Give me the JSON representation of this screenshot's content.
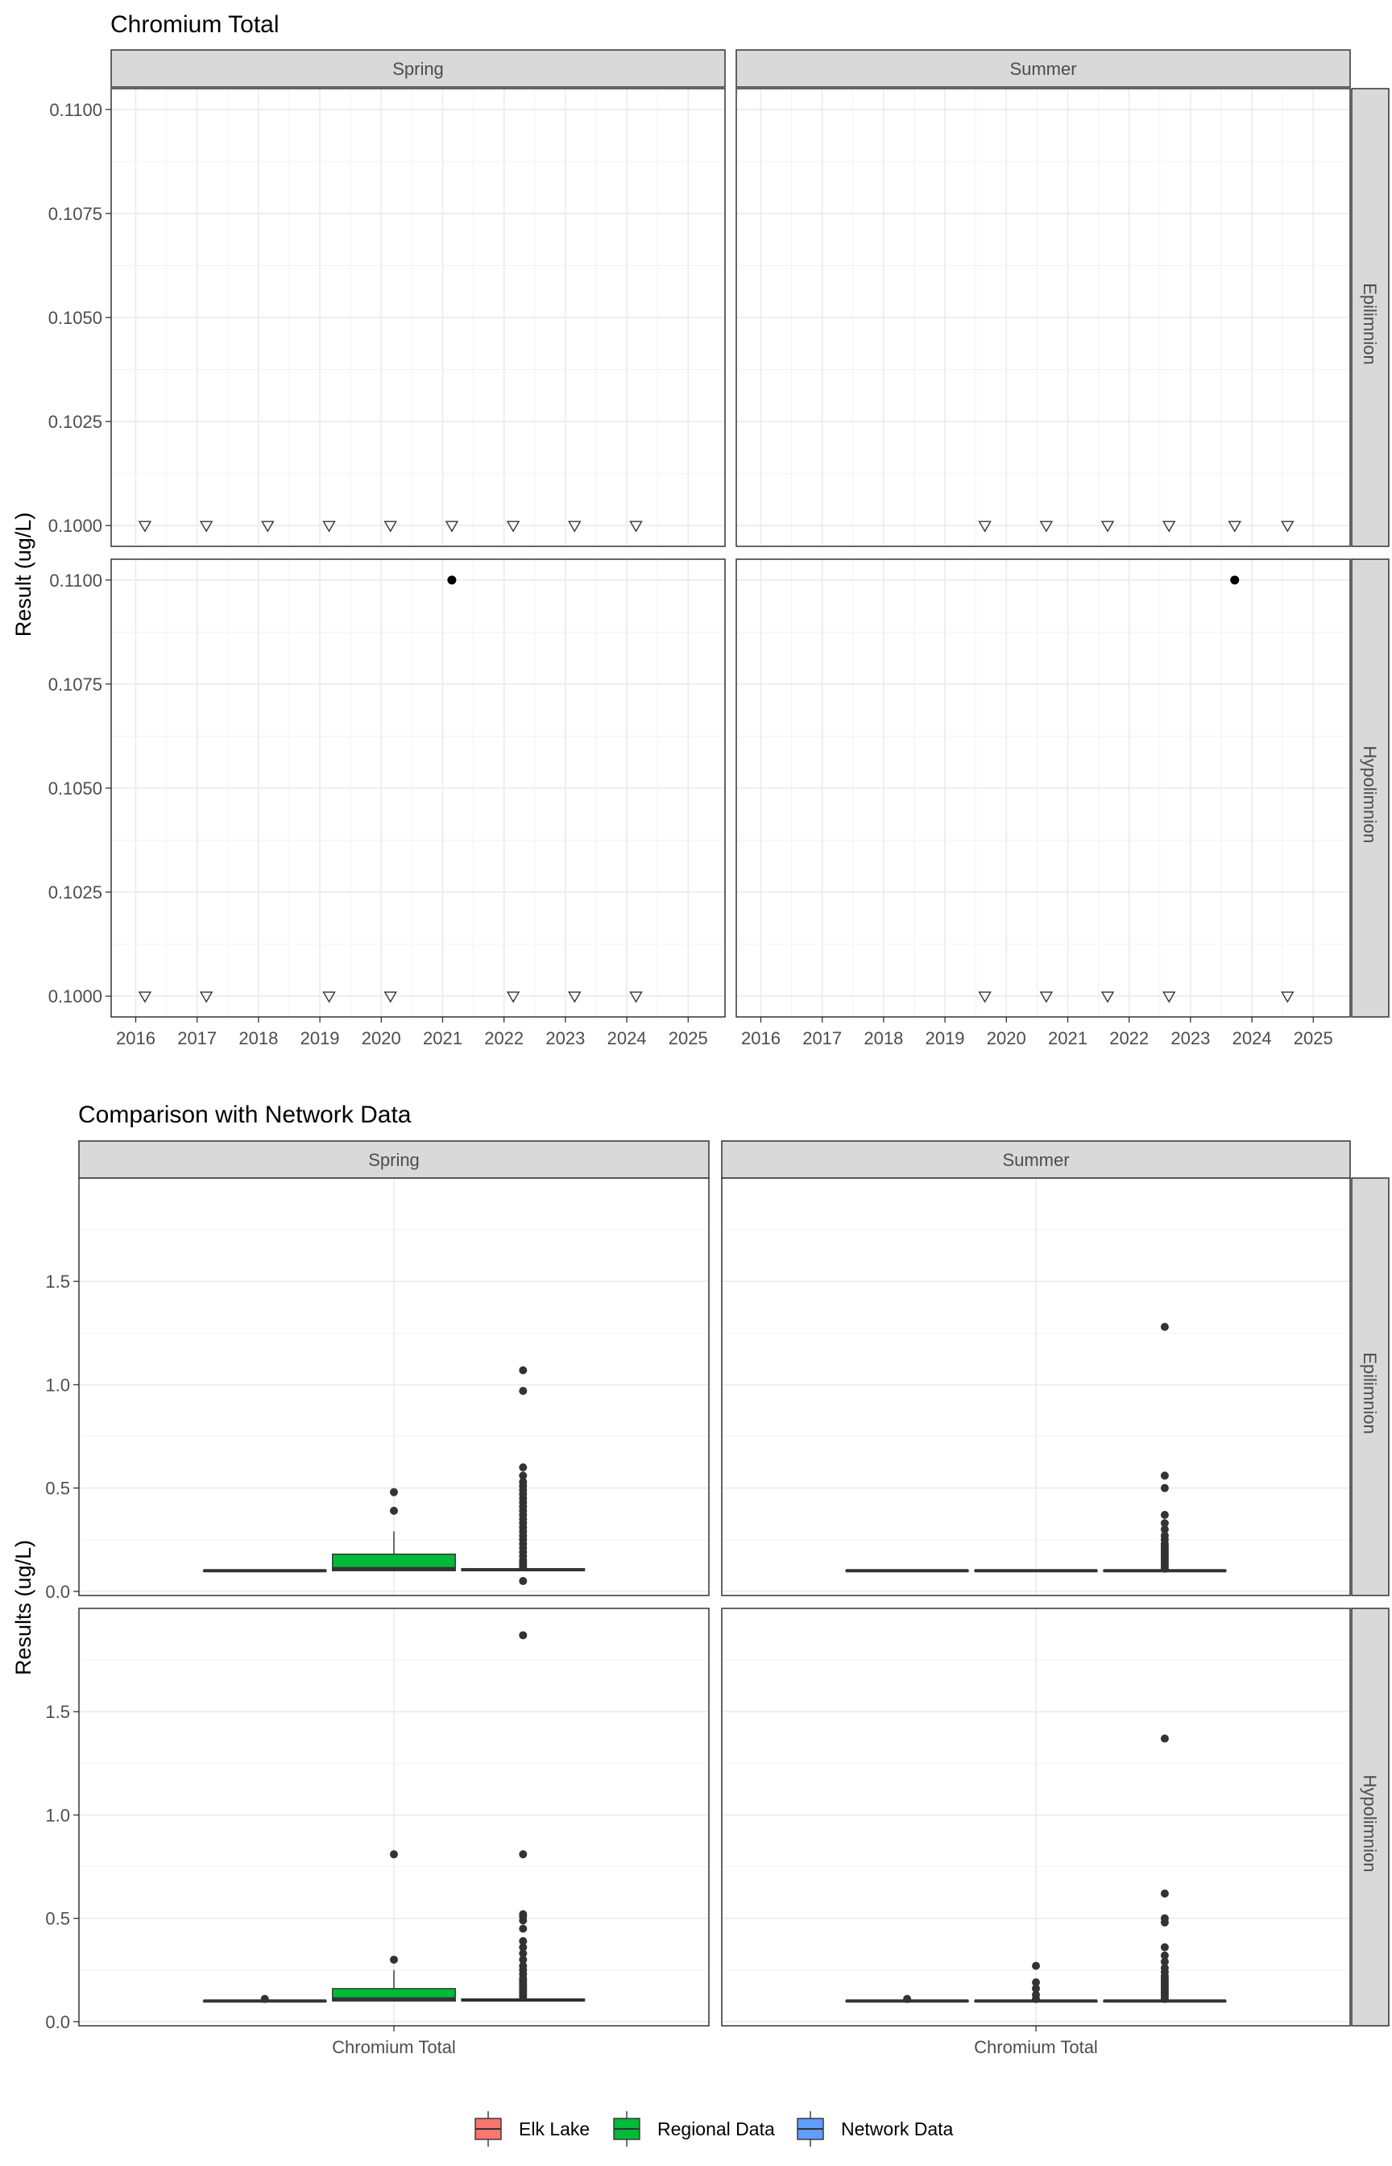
{
  "chart_data": [
    {
      "type": "scatter",
      "title": "Chromium Total",
      "xlabel": "",
      "ylabel": "Result (ug/L)",
      "xlim": [
        2015.6,
        2025.6
      ],
      "ylim": [
        0.0995,
        0.1105
      ],
      "x_ticks": [
        "2016",
        "2017",
        "2018",
        "2019",
        "2020",
        "2021",
        "2022",
        "2023",
        "2024",
        "2025"
      ],
      "y_ticks": [
        "0.1000",
        "0.1025",
        "0.1050",
        "0.1075",
        "0.1100"
      ],
      "columns": [
        "Spring",
        "Summer"
      ],
      "rows": [
        "Epilimnion",
        "Hypolimnion"
      ],
      "grid": true,
      "panels": [
        {
          "col": "Spring",
          "row": "Epilimnion",
          "non_detect": [
            [
              2016.15,
              0.1
            ],
            [
              2017.15,
              0.1
            ],
            [
              2018.15,
              0.1
            ],
            [
              2019.15,
              0.1
            ],
            [
              2020.15,
              0.1
            ],
            [
              2021.15,
              0.1
            ],
            [
              2022.15,
              0.1
            ],
            [
              2023.15,
              0.1
            ],
            [
              2024.15,
              0.1
            ]
          ],
          "detect": []
        },
        {
          "col": "Summer",
          "row": "Epilimnion",
          "non_detect": [
            [
              2019.65,
              0.1
            ],
            [
              2020.65,
              0.1
            ],
            [
              2021.65,
              0.1
            ],
            [
              2022.65,
              0.1
            ],
            [
              2023.72,
              0.1
            ],
            [
              2024.58,
              0.1
            ]
          ],
          "detect": []
        },
        {
          "col": "Spring",
          "row": "Hypolimnion",
          "non_detect": [
            [
              2016.15,
              0.1
            ],
            [
              2017.15,
              0.1
            ],
            [
              2019.15,
              0.1
            ],
            [
              2020.15,
              0.1
            ],
            [
              2022.15,
              0.1
            ],
            [
              2023.15,
              0.1
            ],
            [
              2024.15,
              0.1
            ]
          ],
          "detect": [
            [
              2021.15,
              0.11
            ]
          ]
        },
        {
          "col": "Summer",
          "row": "Hypolimnion",
          "non_detect": [
            [
              2019.65,
              0.1
            ],
            [
              2020.65,
              0.1
            ],
            [
              2021.65,
              0.1
            ],
            [
              2022.65,
              0.1
            ],
            [
              2024.58,
              0.1
            ]
          ],
          "detect": [
            [
              2023.72,
              0.11
            ]
          ]
        }
      ]
    },
    {
      "type": "box",
      "title": "Comparison with Network Data",
      "xlabel": "",
      "ylabel": "Results (ug/L)",
      "categories": [
        "Chromium Total"
      ],
      "ylim": [
        -0.02,
        2.0
      ],
      "y_ticks": [
        "0.0",
        "0.5",
        "1.0",
        "1.5"
      ],
      "columns": [
        "Spring",
        "Summer"
      ],
      "rows": [
        "Epilimnion",
        "Hypolimnion"
      ],
      "grid": true,
      "legend_position": "bottom",
      "legend": [
        {
          "name": "Elk Lake",
          "color": "#F8766D"
        },
        {
          "name": "Regional Data",
          "color": "#00BA38"
        },
        {
          "name": "Network Data",
          "color": "#619CFF"
        }
      ],
      "panels": [
        {
          "col": "Spring",
          "row": "Epilimnion",
          "boxes": [
            {
              "group": "Elk Lake",
              "min": 0.1,
              "q1": 0.1,
              "median": 0.1,
              "q3": 0.1,
              "max": 0.1,
              "outliers": []
            },
            {
              "group": "Regional Data",
              "min": 0.1,
              "q1": 0.1,
              "median": 0.11,
              "q3": 0.18,
              "max": 0.29,
              "outliers": [
                0.39,
                0.48
              ]
            },
            {
              "group": "Network Data",
              "min": 0.1,
              "q1": 0.1,
              "median": 0.105,
              "q3": 0.11,
              "max": 0.11,
              "outliers": [
                0.05,
                0.12,
                0.13,
                0.14,
                0.15,
                0.17,
                0.19,
                0.21,
                0.23,
                0.25,
                0.27,
                0.29,
                0.31,
                0.33,
                0.35,
                0.37,
                0.39,
                0.41,
                0.43,
                0.45,
                0.47,
                0.49,
                0.51,
                0.53,
                0.56,
                0.6,
                0.97,
                1.07
              ]
            }
          ]
        },
        {
          "col": "Summer",
          "row": "Epilimnion",
          "boxes": [
            {
              "group": "Elk Lake",
              "min": 0.1,
              "q1": 0.1,
              "median": 0.1,
              "q3": 0.1,
              "max": 0.1,
              "outliers": []
            },
            {
              "group": "Regional Data",
              "min": 0.1,
              "q1": 0.1,
              "median": 0.1,
              "q3": 0.1,
              "max": 0.1,
              "outliers": []
            },
            {
              "group": "Network Data",
              "min": 0.1,
              "q1": 0.1,
              "median": 0.1,
              "q3": 0.1,
              "max": 0.1,
              "outliers": [
                0.11,
                0.12,
                0.13,
                0.14,
                0.15,
                0.16,
                0.17,
                0.18,
                0.19,
                0.2,
                0.21,
                0.22,
                0.23,
                0.25,
                0.27,
                0.3,
                0.33,
                0.37,
                0.5,
                0.56,
                1.28
              ]
            }
          ]
        },
        {
          "col": "Spring",
          "row": "Hypolimnion",
          "boxes": [
            {
              "group": "Elk Lake",
              "min": 0.1,
              "q1": 0.1,
              "median": 0.1,
              "q3": 0.1,
              "max": 0.1,
              "outliers": [
                0.11
              ]
            },
            {
              "group": "Regional Data",
              "min": 0.1,
              "q1": 0.1,
              "median": 0.11,
              "q3": 0.16,
              "max": 0.25,
              "outliers": [
                0.3,
                0.81
              ]
            },
            {
              "group": "Network Data",
              "min": 0.1,
              "q1": 0.1,
              "median": 0.105,
              "q3": 0.11,
              "max": 0.11,
              "outliers": [
                0.12,
                0.13,
                0.14,
                0.15,
                0.16,
                0.17,
                0.18,
                0.19,
                0.2,
                0.21,
                0.23,
                0.25,
                0.27,
                0.3,
                0.33,
                0.36,
                0.39,
                0.45,
                0.49,
                0.51,
                0.52,
                0.81,
                1.87
              ]
            }
          ]
        },
        {
          "col": "Summer",
          "row": "Hypolimnion",
          "boxes": [
            {
              "group": "Elk Lake",
              "min": 0.1,
              "q1": 0.1,
              "median": 0.1,
              "q3": 0.1,
              "max": 0.1,
              "outliers": [
                0.11
              ]
            },
            {
              "group": "Regional Data",
              "min": 0.1,
              "q1": 0.1,
              "median": 0.1,
              "q3": 0.1,
              "max": 0.1,
              "outliers": [
                0.11,
                0.13,
                0.16,
                0.19,
                0.27
              ]
            },
            {
              "group": "Network Data",
              "min": 0.1,
              "q1": 0.1,
              "median": 0.1,
              "q3": 0.1,
              "max": 0.1,
              "outliers": [
                0.11,
                0.12,
                0.13,
                0.14,
                0.15,
                0.16,
                0.17,
                0.18,
                0.19,
                0.2,
                0.21,
                0.22,
                0.24,
                0.26,
                0.29,
                0.32,
                0.36,
                0.48,
                0.5,
                0.62,
                1.37
              ]
            }
          ]
        }
      ]
    }
  ]
}
